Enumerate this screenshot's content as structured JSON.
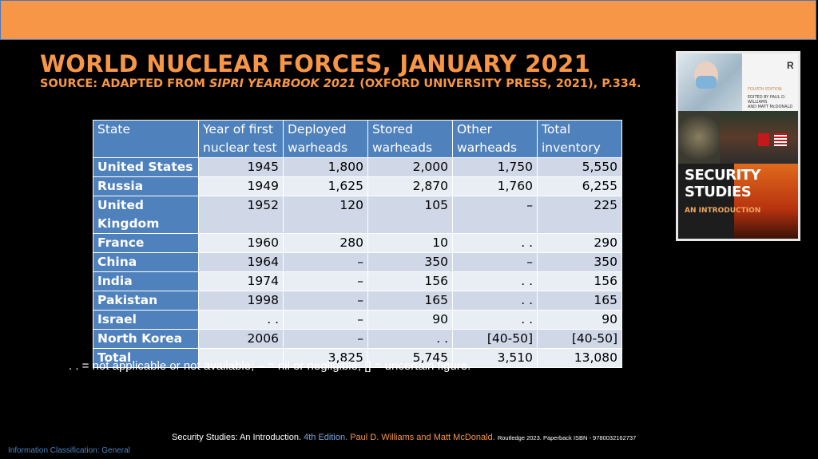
{
  "slide": {
    "title": "WORLD NUCLEAR FORCES, JANUARY 2021",
    "subtitle_prefix": "SOURCE: ADAPTED FROM ",
    "subtitle_italic": "SIPRI YEARBOOK 2021",
    "subtitle_suffix": " (OXFORD UNIVERSITY PRESS, 2021), P.334.",
    "colors": {
      "accent": "#f79646",
      "header_blue": "#4f81bd",
      "row_light": "#e9edf4",
      "row_mid": "#d0d8e8"
    }
  },
  "table": {
    "headers": [
      "State",
      "Year of first nuclear test",
      "Deployed warheads",
      "Stored warheads",
      "Other warheads",
      "Total inventory"
    ],
    "rows": [
      [
        "United States",
        "1945",
        "1,800",
        "2,000",
        "1,750",
        "5,550"
      ],
      [
        "Russia",
        "1949",
        "1,625",
        "2,870",
        "1,760",
        "6,255"
      ],
      [
        "United Kingdom",
        "1952",
        "120",
        "105",
        "–",
        "225"
      ],
      [
        "France",
        "1960",
        "280",
        "10",
        ". .",
        "290"
      ],
      [
        "China",
        "1964",
        "–",
        "350",
        "–",
        "350"
      ],
      [
        "India",
        "1974",
        "–",
        "156",
        ". .",
        "156"
      ],
      [
        "Pakistan",
        "1998",
        "–",
        "165",
        ". .",
        "165"
      ],
      [
        "Israel",
        ". .",
        "–",
        "90",
        ". .",
        "90"
      ],
      [
        "North Korea",
        "2006",
        "–",
        ". .",
        "[40-50]",
        "[40-50]"
      ],
      [
        "Total",
        "",
        "3,825",
        "5,745",
        "3,510",
        "13,080"
      ]
    ]
  },
  "note": ". . = not applicable or not available; – = nil or negligible; [] = uncertain figure.",
  "book_cover": {
    "title_line1": "SECURITY",
    "title_line2": "STUDIES",
    "subtitle": "AN INTRODUCTION",
    "edition": "FOURTH EDITION",
    "editors_line1": "EDITED BY PAUL D. WILLIAMS",
    "editors_line2": "AND MATT McDONALD",
    "publisher_mark": "R"
  },
  "footer": {
    "book": "Security Studies: An Introduction. ",
    "edition": "4th Edition. ",
    "authors": "Paul D. Williams and Matt McDonald. ",
    "publisher": "Routledge 2023. Paperback ISBN - 9780032162737"
  },
  "classification": "Information Classification: General"
}
